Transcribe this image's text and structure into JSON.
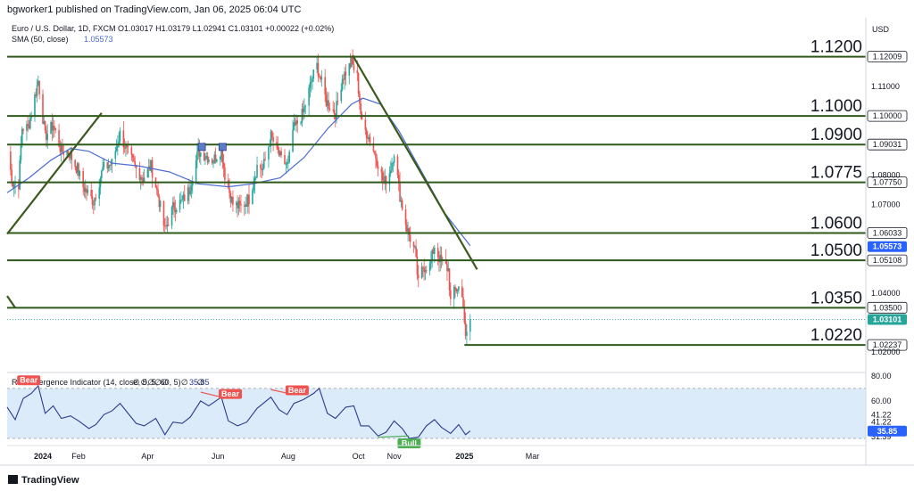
{
  "header": {
    "published": "bgworker1 published on TradingView.com, Jan 06, 2025 06:04 UTC",
    "symbol_line": "Euro / U.S. Dollar, 1D, FXCM  O1.03017  H1.03179  L1.02941  C1.03101  +0.00022 (+0.02%)",
    "sma_label": "SMA (50, close)",
    "sma_value": "1.05573",
    "currency": "USD"
  },
  "footer": {
    "brand": "TradingView"
  },
  "colors": {
    "up": "#26a69a",
    "down": "#ef5350",
    "sma": "#4a6cd4",
    "level": "#2d5a1b",
    "trend": "#3d5a1e",
    "rsi_line": "#2a3a8f",
    "rsi_band": "#dcebf9",
    "last_tag": "#26a69a",
    "sma_tag": "#2962ff",
    "bear": "#ef5350",
    "bull": "#4caf50"
  },
  "chart_data": [
    {
      "type": "candlestick",
      "title": "Euro / U.S. Dollar, 1D, FXCM",
      "x_ticks": [
        "2024",
        "Feb",
        "Apr",
        "Jun",
        "Aug",
        "Oct",
        "Nov",
        "2025",
        "Mar"
      ],
      "y_ticks": [
        "1.11000",
        "1.08000",
        "1.07000",
        "1.04000",
        "1.02000"
      ],
      "ylim": [
        1.0195,
        1.1215
      ],
      "ohlc_last": {
        "open": 1.03017,
        "high": 1.03179,
        "low": 1.02941,
        "close": 1.03101
      },
      "close_path": [
        [
          "2023-12-01",
          1.088
        ],
        [
          "2023-12-06",
          1.077
        ],
        [
          "2023-12-11",
          1.077
        ],
        [
          "2023-12-14",
          1.096
        ],
        [
          "2023-12-19",
          1.096
        ],
        [
          "2023-12-22",
          1.101
        ],
        [
          "2023-12-28",
          1.112
        ],
        [
          "2024-01-03",
          1.093
        ],
        [
          "2024-01-10",
          1.097
        ],
        [
          "2024-01-17",
          1.088
        ],
        [
          "2024-01-23",
          1.088
        ],
        [
          "2024-01-31",
          1.082
        ],
        [
          "2024-02-05",
          1.076
        ],
        [
          "2024-02-14",
          1.071
        ],
        [
          "2024-02-22",
          1.082
        ],
        [
          "2024-03-01",
          1.084
        ],
        [
          "2024-03-08",
          1.094
        ],
        [
          "2024-03-14",
          1.088
        ],
        [
          "2024-03-22",
          1.082
        ],
        [
          "2024-03-28",
          1.079
        ],
        [
          "2024-04-04",
          1.083
        ],
        [
          "2024-04-10",
          1.073
        ],
        [
          "2024-04-16",
          1.061
        ],
        [
          "2024-04-23",
          1.069
        ],
        [
          "2024-05-01",
          1.071
        ],
        [
          "2024-05-07",
          1.075
        ],
        [
          "2024-05-15",
          1.088
        ],
        [
          "2024-05-20",
          1.087
        ],
        [
          "2024-05-28",
          1.085
        ],
        [
          "2024-06-04",
          1.089
        ],
        [
          "2024-06-07",
          1.08
        ],
        [
          "2024-06-14",
          1.07
        ],
        [
          "2024-06-21",
          1.069
        ],
        [
          "2024-06-28",
          1.072
        ],
        [
          "2024-07-05",
          1.083
        ],
        [
          "2024-07-10",
          1.082
        ],
        [
          "2024-07-17",
          1.093
        ],
        [
          "2024-07-26",
          1.085
        ],
        [
          "2024-08-01",
          1.083
        ],
        [
          "2024-08-05",
          1.095
        ],
        [
          "2024-08-14",
          1.101
        ],
        [
          "2024-08-22",
          1.113
        ],
        [
          "2024-08-26",
          1.117
        ],
        [
          "2024-09-03",
          1.105
        ],
        [
          "2024-09-11",
          1.101
        ],
        [
          "2024-09-17",
          1.113
        ],
        [
          "2024-09-25",
          1.118
        ],
        [
          "2024-09-30",
          1.113
        ],
        [
          "2024-10-04",
          1.097
        ],
        [
          "2024-10-10",
          1.093
        ],
        [
          "2024-10-18",
          1.084
        ],
        [
          "2024-10-23",
          1.077
        ],
        [
          "2024-10-28",
          1.081
        ],
        [
          "2024-11-01",
          1.088
        ],
        [
          "2024-11-06",
          1.073
        ],
        [
          "2024-11-12",
          1.062
        ],
        [
          "2024-11-19",
          1.054
        ],
        [
          "2024-11-22",
          1.043
        ],
        [
          "2024-11-26",
          1.049
        ],
        [
          "2024-12-02",
          1.049
        ],
        [
          "2024-12-06",
          1.056
        ],
        [
          "2024-12-11",
          1.051
        ],
        [
          "2024-12-18",
          1.048
        ],
        [
          "2024-12-20",
          1.037
        ],
        [
          "2024-12-24",
          1.041
        ],
        [
          "2024-12-27",
          1.042
        ],
        [
          "2024-12-31",
          1.037
        ],
        [
          "2025-01-02",
          1.024
        ],
        [
          "2025-01-06",
          1.031
        ]
      ],
      "sma": {
        "name": "SMA (50, close)",
        "last": 1.05573,
        "points": [
          [
            "2023-12-01",
            1.074
          ],
          [
            "2023-12-20",
            1.079
          ],
          [
            "2024-01-08",
            1.085
          ],
          [
            "2024-01-25",
            1.089
          ],
          [
            "2024-02-10",
            1.088
          ],
          [
            "2024-03-01",
            1.084
          ],
          [
            "2024-03-25",
            1.083
          ],
          [
            "2024-04-20",
            1.081
          ],
          [
            "2024-05-15",
            1.077
          ],
          [
            "2024-06-10",
            1.076
          ],
          [
            "2024-07-01",
            1.077
          ],
          [
            "2024-07-25",
            1.079
          ],
          [
            "2024-08-15",
            1.086
          ],
          [
            "2024-09-05",
            1.096
          ],
          [
            "2024-09-25",
            1.104
          ],
          [
            "2024-10-05",
            1.106
          ],
          [
            "2024-10-20",
            1.104
          ],
          [
            "2024-11-05",
            1.095
          ],
          [
            "2024-11-25",
            1.081
          ],
          [
            "2024-12-15",
            1.067
          ],
          [
            "2025-01-06",
            1.056
          ]
        ]
      },
      "horizontal_levels": [
        {
          "value": 1.12009,
          "label": "1.1200",
          "tag": "1.12009"
        },
        {
          "value": 1.1,
          "label": "1.1000",
          "tag": "1.10000"
        },
        {
          "value": 1.09031,
          "label": "1.0900",
          "tag": "1.09031"
        },
        {
          "value": 1.0775,
          "label": "1.0775",
          "tag": "1.07750"
        },
        {
          "value": 1.06033,
          "label": "1.0600",
          "tag": "1.06033"
        },
        {
          "value": 1.05108,
          "label": "1.0500",
          "tag": "1.05108"
        },
        {
          "value": 1.035,
          "label": "1.0350",
          "tag": "1.03500"
        },
        {
          "value": 1.02237,
          "label": "1.0220",
          "tag": "1.02237",
          "start": "2025-01-01"
        }
      ],
      "price_tags": {
        "last": "1.03101",
        "sma": "1.05573"
      },
      "trendlines": [
        {
          "from": [
            "2023-12-01",
            1.06
          ],
          "to": [
            "2024-02-21",
            1.101
          ]
        },
        {
          "from": [
            "2024-09-26",
            1.1205
          ],
          "to": [
            "2025-01-12",
            1.048
          ]
        },
        {
          "from": [
            "2023-12-01",
            1.039
          ],
          "to": [
            "2023-12-08",
            1.035
          ]
        }
      ],
      "markers": [
        {
          "date": "2024-05-18",
          "value": 1.0895
        },
        {
          "date": "2024-06-05",
          "value": 1.0895
        }
      ]
    },
    {
      "type": "line",
      "title": "RSI Divergence Indicator (14, close, 5, 5, 60, 5)",
      "value_label": "35.85",
      "y_ticks": [
        "80.00",
        "60.00",
        "41.22",
        "41.22",
        "31.39"
      ],
      "tag_last": "35.85",
      "ylim": [
        25,
        82
      ],
      "band": [
        30,
        70
      ],
      "points": [
        [
          "2023-12-01",
          55
        ],
        [
          "2023-12-08",
          45
        ],
        [
          "2023-12-15",
          62
        ],
        [
          "2023-12-22",
          66
        ],
        [
          "2023-12-28",
          72
        ],
        [
          "2024-01-03",
          50
        ],
        [
          "2024-01-10",
          56
        ],
        [
          "2024-01-17",
          46
        ],
        [
          "2024-01-25",
          48
        ],
        [
          "2024-02-01",
          44
        ],
        [
          "2024-02-10",
          38
        ],
        [
          "2024-02-16",
          41
        ],
        [
          "2024-02-23",
          49
        ],
        [
          "2024-03-01",
          52
        ],
        [
          "2024-03-08",
          58
        ],
        [
          "2024-03-15",
          50
        ],
        [
          "2024-03-22",
          42
        ],
        [
          "2024-03-29",
          40
        ],
        [
          "2024-04-08",
          46
        ],
        [
          "2024-04-16",
          33
        ],
        [
          "2024-04-23",
          43
        ],
        [
          "2024-05-01",
          42
        ],
        [
          "2024-05-08",
          47
        ],
        [
          "2024-05-17",
          60
        ],
        [
          "2024-05-24",
          56
        ],
        [
          "2024-06-04",
          63
        ],
        [
          "2024-06-10",
          44
        ],
        [
          "2024-06-18",
          40
        ],
        [
          "2024-06-26",
          43
        ],
        [
          "2024-07-05",
          54
        ],
        [
          "2024-07-17",
          63
        ],
        [
          "2024-07-24",
          53
        ],
        [
          "2024-07-31",
          49
        ],
        [
          "2024-08-06",
          58
        ],
        [
          "2024-08-14",
          61
        ],
        [
          "2024-08-23",
          66
        ],
        [
          "2024-08-28",
          70
        ],
        [
          "2024-09-04",
          50
        ],
        [
          "2024-09-11",
          46
        ],
        [
          "2024-09-20",
          55
        ],
        [
          "2024-09-27",
          56
        ],
        [
          "2024-10-03",
          40
        ],
        [
          "2024-10-10",
          40
        ],
        [
          "2024-10-18",
          32
        ],
        [
          "2024-10-25",
          35
        ],
        [
          "2024-11-01",
          44
        ],
        [
          "2024-11-08",
          38
        ],
        [
          "2024-11-14",
          30
        ],
        [
          "2024-11-22",
          31
        ],
        [
          "2024-11-29",
          40
        ],
        [
          "2024-12-06",
          45
        ],
        [
          "2024-12-12",
          39
        ],
        [
          "2024-12-20",
          34
        ],
        [
          "2024-12-27",
          41
        ],
        [
          "2025-01-02",
          33
        ],
        [
          "2025-01-06",
          36
        ]
      ],
      "divergences": [
        {
          "label": "Bear",
          "from": [
            "2023-12-08",
            74
          ],
          "to": [
            "2023-12-12",
            74
          ]
        },
        {
          "label": "Bear",
          "from": [
            "2024-05-17",
            67
          ],
          "to": [
            "2024-06-04",
            63
          ]
        },
        {
          "label": "Bear",
          "from": [
            "2024-07-17",
            69
          ],
          "to": [
            "2024-08-01",
            66
          ]
        },
        {
          "label": "Bull",
          "from": [
            "2024-10-18",
            31
          ],
          "to": [
            "2024-11-14",
            32
          ]
        }
      ],
      "pivot_marks": [
        {
          "date": "2024-03-22",
          "symbol": "∅"
        },
        {
          "date": "2024-03-29",
          "symbol": "∅"
        },
        {
          "date": "2024-04-04",
          "symbol": "∅"
        },
        {
          "date": "2024-04-10",
          "symbol": "∅"
        },
        {
          "date": "2024-04-16",
          "symbol": "∅"
        },
        {
          "date": "2024-05-03",
          "symbol": "∅"
        },
        {
          "date": "2024-05-17",
          "symbol": "∅"
        }
      ]
    }
  ]
}
